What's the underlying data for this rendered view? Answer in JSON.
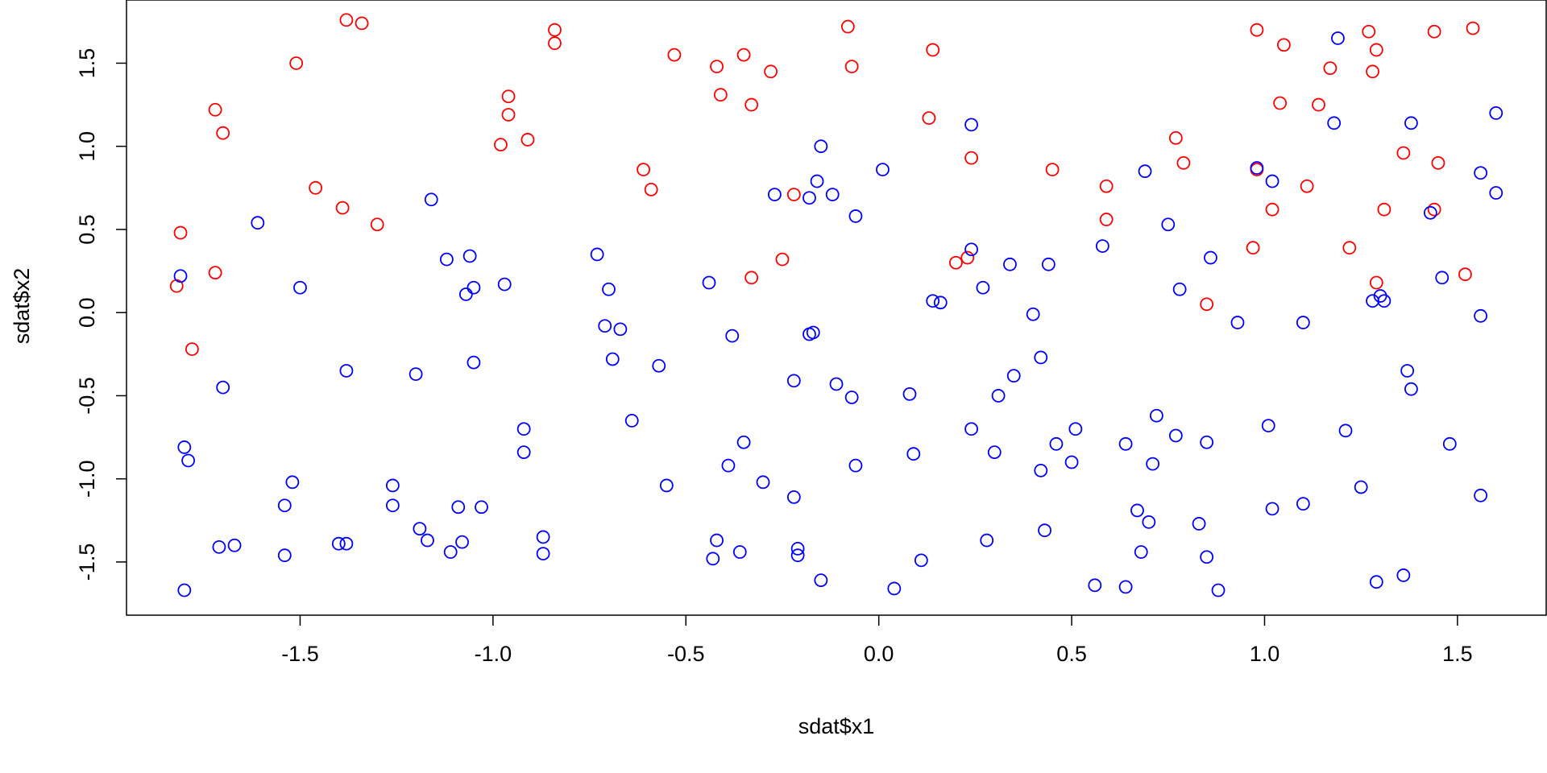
{
  "colors": {
    "class_a": "#ff0000",
    "class_b": "#0000ff",
    "axis": "#000000",
    "background": "#ffffff"
  },
  "chart_data": {
    "type": "scatter",
    "title": "",
    "xlabel": "sdat$x1",
    "ylabel": "sdat$x2",
    "xlim": [
      -1.95,
      1.73
    ],
    "ylim": [
      -1.82,
      1.88
    ],
    "x_ticks": [
      -1.5,
      -1.0,
      -0.5,
      0.0,
      0.5,
      1.0,
      1.5
    ],
    "x_tick_labels": [
      "-1.5",
      "-1.0",
      "-0.5",
      "0.0",
      "0.5",
      "1.0",
      "1.5"
    ],
    "y_ticks": [
      -1.5,
      -1.0,
      -0.5,
      0.0,
      0.5,
      1.0,
      1.5
    ],
    "y_tick_labels": [
      "-1.5",
      "-1.0",
      "-0.5",
      "0.0",
      "0.5",
      "1.0",
      "1.5"
    ],
    "grid": false,
    "marker": "open-circle",
    "series": [
      {
        "color": "#ff0000",
        "points": [
          [
            -1.81,
            0.48
          ],
          [
            -1.82,
            0.16
          ],
          [
            -1.78,
            -0.22
          ],
          [
            -1.72,
            1.22
          ],
          [
            -1.7,
            1.08
          ],
          [
            -1.72,
            0.24
          ],
          [
            -1.51,
            1.5
          ],
          [
            -1.46,
            0.75
          ],
          [
            -1.38,
            1.76
          ],
          [
            -1.34,
            1.74
          ],
          [
            -1.39,
            0.63
          ],
          [
            -1.3,
            0.53
          ],
          [
            -0.96,
            1.3
          ],
          [
            -0.96,
            1.19
          ],
          [
            -0.98,
            1.01
          ],
          [
            -0.91,
            1.04
          ],
          [
            -0.84,
            1.7
          ],
          [
            -0.84,
            1.62
          ],
          [
            -0.53,
            1.55
          ],
          [
            -0.61,
            0.86
          ],
          [
            -0.59,
            0.74
          ],
          [
            -0.42,
            1.48
          ],
          [
            -0.41,
            1.31
          ],
          [
            -0.35,
            1.55
          ],
          [
            -0.33,
            1.25
          ],
          [
            -0.28,
            1.45
          ],
          [
            -0.33,
            0.21
          ],
          [
            -0.25,
            0.32
          ],
          [
            -0.22,
            0.71
          ],
          [
            -0.08,
            1.72
          ],
          [
            -0.07,
            1.48
          ],
          [
            0.14,
            1.58
          ],
          [
            0.13,
            1.17
          ],
          [
            0.24,
            0.93
          ],
          [
            0.2,
            0.3
          ],
          [
            0.23,
            0.33
          ],
          [
            0.45,
            0.86
          ],
          [
            0.59,
            0.76
          ],
          [
            0.59,
            0.56
          ],
          [
            0.77,
            1.05
          ],
          [
            0.79,
            0.9
          ],
          [
            0.85,
            0.05
          ],
          [
            0.98,
            1.7
          ],
          [
            0.98,
            0.86
          ],
          [
            0.97,
            0.39
          ],
          [
            1.02,
            0.62
          ],
          [
            1.04,
            1.26
          ],
          [
            1.05,
            1.61
          ],
          [
            1.11,
            0.76
          ],
          [
            1.14,
            1.25
          ],
          [
            1.17,
            1.47
          ],
          [
            1.22,
            0.39
          ],
          [
            1.27,
            1.69
          ],
          [
            1.28,
            1.45
          ],
          [
            1.29,
            1.58
          ],
          [
            1.29,
            0.18
          ],
          [
            1.31,
            0.62
          ],
          [
            1.36,
            0.96
          ],
          [
            1.44,
            1.69
          ],
          [
            1.45,
            0.9
          ],
          [
            1.44,
            0.62
          ],
          [
            1.52,
            0.23
          ],
          [
            1.54,
            1.71
          ]
        ]
      },
      {
        "color": "#0000ff",
        "points": [
          [
            -1.81,
            0.22
          ],
          [
            -1.8,
            -0.81
          ],
          [
            -1.79,
            -0.89
          ],
          [
            -1.8,
            -1.67
          ],
          [
            -1.7,
            -0.45
          ],
          [
            -1.71,
            -1.41
          ],
          [
            -1.67,
            -1.4
          ],
          [
            -1.61,
            0.54
          ],
          [
            -1.5,
            0.15
          ],
          [
            -1.52,
            -1.02
          ],
          [
            -1.54,
            -1.16
          ],
          [
            -1.54,
            -1.46
          ],
          [
            -1.4,
            -1.39
          ],
          [
            -1.38,
            -1.39
          ],
          [
            -1.38,
            -0.35
          ],
          [
            -1.26,
            -1.04
          ],
          [
            -1.26,
            -1.16
          ],
          [
            -1.2,
            -0.37
          ],
          [
            -1.19,
            -1.3
          ],
          [
            -1.17,
            -1.37
          ],
          [
            -1.16,
            0.68
          ],
          [
            -1.12,
            0.32
          ],
          [
            -1.11,
            -1.44
          ],
          [
            -1.09,
            -1.17
          ],
          [
            -1.08,
            -1.38
          ],
          [
            -1.06,
            0.34
          ],
          [
            -1.07,
            0.11
          ],
          [
            -1.05,
            0.15
          ],
          [
            -1.05,
            -0.3
          ],
          [
            -1.03,
            -1.17
          ],
          [
            -0.97,
            0.17
          ],
          [
            -0.92,
            -0.7
          ],
          [
            -0.92,
            -0.84
          ],
          [
            -0.87,
            -1.35
          ],
          [
            -0.87,
            -1.45
          ],
          [
            -0.73,
            0.35
          ],
          [
            -0.7,
            0.14
          ],
          [
            -0.71,
            -0.08
          ],
          [
            -0.69,
            -0.28
          ],
          [
            -0.67,
            -0.1
          ],
          [
            -0.64,
            -0.65
          ],
          [
            -0.57,
            -0.32
          ],
          [
            -0.55,
            -1.04
          ],
          [
            -0.44,
            0.18
          ],
          [
            -0.43,
            -1.48
          ],
          [
            -0.42,
            -1.37
          ],
          [
            -0.38,
            -0.14
          ],
          [
            -0.39,
            -0.92
          ],
          [
            -0.36,
            -1.44
          ],
          [
            -0.35,
            -0.78
          ],
          [
            -0.3,
            -1.02
          ],
          [
            -0.27,
            0.71
          ],
          [
            -0.22,
            -0.41
          ],
          [
            -0.22,
            -1.11
          ],
          [
            -0.21,
            -1.42
          ],
          [
            -0.21,
            -1.46
          ],
          [
            -0.18,
            0.69
          ],
          [
            -0.18,
            -0.13
          ],
          [
            -0.17,
            -0.12
          ],
          [
            -0.16,
            0.79
          ],
          [
            -0.15,
            1.0
          ],
          [
            -0.15,
            -1.61
          ],
          [
            -0.12,
            0.71
          ],
          [
            -0.11,
            -0.43
          ],
          [
            -0.07,
            -0.51
          ],
          [
            -0.06,
            0.58
          ],
          [
            -0.06,
            -0.92
          ],
          [
            0.01,
            0.86
          ],
          [
            0.04,
            -1.66
          ],
          [
            0.08,
            -0.49
          ],
          [
            0.09,
            -0.85
          ],
          [
            0.11,
            -1.49
          ],
          [
            0.14,
            0.07
          ],
          [
            0.16,
            0.06
          ],
          [
            0.24,
            1.13
          ],
          [
            0.24,
            0.38
          ],
          [
            0.24,
            -0.7
          ],
          [
            0.27,
            0.15
          ],
          [
            0.28,
            -1.37
          ],
          [
            0.3,
            -0.84
          ],
          [
            0.31,
            -0.5
          ],
          [
            0.34,
            0.29
          ],
          [
            0.35,
            -0.38
          ],
          [
            0.4,
            -0.01
          ],
          [
            0.42,
            -0.27
          ],
          [
            0.42,
            -0.95
          ],
          [
            0.43,
            -1.31
          ],
          [
            0.44,
            0.29
          ],
          [
            0.46,
            -0.79
          ],
          [
            0.5,
            -0.9
          ],
          [
            0.51,
            -0.7
          ],
          [
            0.56,
            -1.64
          ],
          [
            0.58,
            0.4
          ],
          [
            0.64,
            -0.79
          ],
          [
            0.64,
            -1.65
          ],
          [
            0.67,
            -1.19
          ],
          [
            0.68,
            -1.44
          ],
          [
            0.69,
            0.85
          ],
          [
            0.7,
            -1.26
          ],
          [
            0.71,
            -0.91
          ],
          [
            0.72,
            -0.62
          ],
          [
            0.75,
            0.53
          ],
          [
            0.77,
            -0.74
          ],
          [
            0.78,
            0.14
          ],
          [
            0.83,
            -1.27
          ],
          [
            0.85,
            -0.78
          ],
          [
            0.85,
            -1.47
          ],
          [
            0.86,
            0.33
          ],
          [
            0.88,
            -1.67
          ],
          [
            0.93,
            -0.06
          ],
          [
            0.98,
            0.87
          ],
          [
            1.01,
            -0.68
          ],
          [
            1.02,
            -1.18
          ],
          [
            1.02,
            0.79
          ],
          [
            1.1,
            -0.06
          ],
          [
            1.1,
            -1.15
          ],
          [
            1.18,
            1.14
          ],
          [
            1.19,
            1.65
          ],
          [
            1.21,
            -0.71
          ],
          [
            1.25,
            -1.05
          ],
          [
            1.28,
            0.07
          ],
          [
            1.29,
            -1.62
          ],
          [
            1.3,
            0.1
          ],
          [
            1.31,
            0.07
          ],
          [
            1.36,
            -1.58
          ],
          [
            1.37,
            -0.35
          ],
          [
            1.38,
            -0.46
          ],
          [
            1.38,
            1.14
          ],
          [
            1.43,
            0.6
          ],
          [
            1.46,
            0.21
          ],
          [
            1.48,
            -0.79
          ],
          [
            1.56,
            0.84
          ],
          [
            1.56,
            -0.02
          ],
          [
            1.56,
            -1.1
          ],
          [
            1.6,
            1.2
          ],
          [
            1.6,
            0.72
          ]
        ]
      }
    ]
  }
}
